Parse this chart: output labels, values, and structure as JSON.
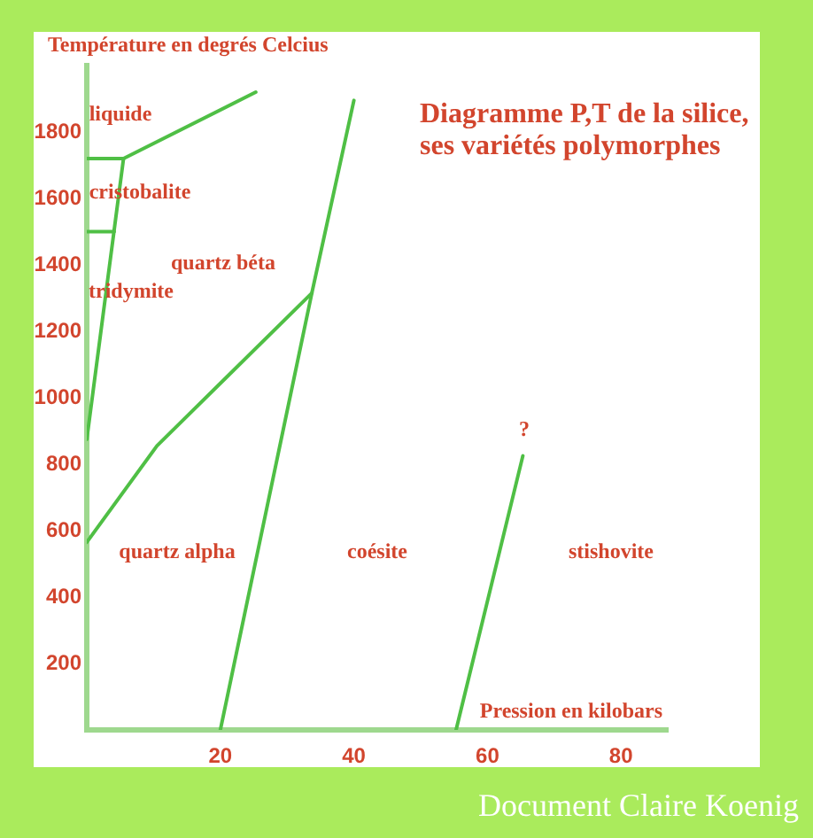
{
  "chart_data": {
    "type": "line",
    "title": "Diagramme P,T de la silice, ses variétés polymorphes",
    "xlabel": "Pression en kilobars",
    "ylabel": "Température en degrés Celcius",
    "xlim": [
      0,
      87
    ],
    "ylim": [
      0,
      2000
    ],
    "xticks": [
      20,
      40,
      60,
      80
    ],
    "yticks": [
      200,
      400,
      600,
      800,
      1000,
      1200,
      1400,
      1600,
      1800
    ],
    "marker": "none",
    "line_style": "solid",
    "series": [
      {
        "color": "#4fbf45",
        "x": [
          0,
          5.5
        ],
        "values": [
          875,
          1720
        ]
      },
      {
        "color": "#4fbf45",
        "x": [
          0,
          5.5
        ],
        "values": [
          1720,
          1720
        ]
      },
      {
        "color": "#4fbf45",
        "x": [
          5.5,
          25.3
        ],
        "values": [
          1720,
          1920
        ]
      },
      {
        "color": "#4fbf45",
        "x": [
          0,
          4.1
        ],
        "values": [
          1500,
          1500
        ]
      },
      {
        "color": "#4fbf45",
        "x": [
          0,
          10.5,
          33.7
        ],
        "values": [
          565,
          855,
          1315
        ]
      },
      {
        "color": "#4fbf45",
        "x": [
          20,
          33.7,
          40
        ],
        "values": [
          0,
          1315,
          1895
        ]
      },
      {
        "color": "#4fbf45",
        "x": [
          55.3,
          65.3
        ],
        "values": [
          0,
          825
        ]
      }
    ],
    "annotations": [
      "liquide",
      "cristobalite",
      "tridymite",
      "quartz béta",
      "quartz alpha",
      "coésite",
      "stishovite",
      "?",
      "Document Claire Koenig"
    ]
  }
}
